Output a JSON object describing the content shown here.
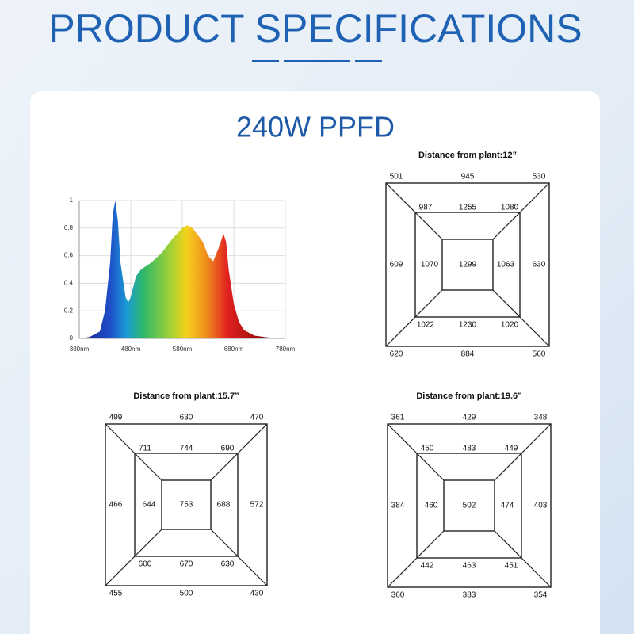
{
  "header": {
    "title": "PRODUCT SPECIFICATIONS",
    "subtitle": "240W PPFD"
  },
  "chart_data": {
    "type": "area",
    "x": [
      380,
      400,
      420,
      430,
      440,
      445,
      450,
      455,
      460,
      470,
      475,
      480,
      490,
      500,
      520,
      540,
      560,
      580,
      590,
      600,
      620,
      630,
      640,
      650,
      660,
      665,
      670,
      680,
      690,
      700,
      720,
      750,
      780
    ],
    "values": [
      0,
      0.01,
      0.05,
      0.2,
      0.55,
      0.9,
      1,
      0.85,
      0.55,
      0.3,
      0.26,
      0.3,
      0.45,
      0.5,
      0.55,
      0.62,
      0.72,
      0.8,
      0.82,
      0.8,
      0.7,
      0.6,
      0.56,
      0.65,
      0.76,
      0.7,
      0.5,
      0.25,
      0.12,
      0.06,
      0.02,
      0.005,
      0
    ],
    "xlim": [
      380,
      780
    ],
    "ylim": [
      0,
      1
    ],
    "xticks": [
      {
        "value": 380,
        "label": "380nm"
      },
      {
        "value": 480,
        "label": "480nm"
      },
      {
        "value": 580,
        "label": "580nm"
      },
      {
        "value": 680,
        "label": "680nm"
      },
      {
        "value": 780,
        "label": "780nm"
      }
    ],
    "yticks": [
      0,
      0.2,
      0.4,
      0.6,
      0.8,
      1
    ],
    "grid": true
  },
  "diagrams": [
    {
      "title": "Distance from plant:12”",
      "outer": [
        501,
        945,
        530,
        630,
        560,
        884,
        620,
        609
      ],
      "mid": [
        987,
        1255,
        1080,
        1063,
        1020,
        1230,
        1022,
        1070
      ],
      "center": 1299
    },
    {
      "title": "Distance from plant:15.7”",
      "outer": [
        499,
        630,
        470,
        572,
        430,
        500,
        455,
        466
      ],
      "mid": [
        711,
        744,
        690,
        688,
        630,
        670,
        600,
        644
      ],
      "center": 753
    },
    {
      "title": "Distance from plant:19.6”",
      "outer": [
        361,
        429,
        348,
        403,
        354,
        383,
        360,
        384
      ],
      "mid": [
        450,
        483,
        449,
        474,
        451,
        463,
        442,
        460
      ],
      "center": 502
    }
  ]
}
